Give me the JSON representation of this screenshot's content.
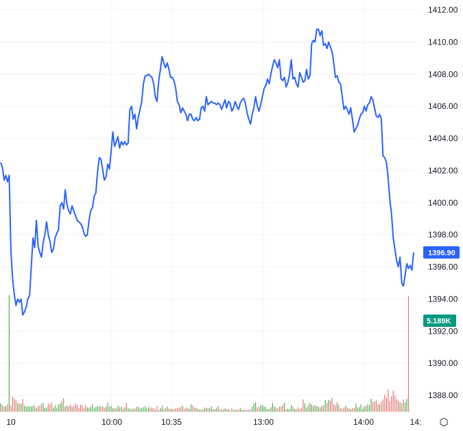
{
  "chart_data": {
    "type": "line",
    "series": [
      {
        "kind": "price",
        "color": "#2962ff",
        "values": [
          1402.5,
          1402.2,
          1401.4,
          1401.7,
          1401.3,
          1401.7,
          1397.0,
          1395.3,
          1394.3,
          1393.6,
          1394.0,
          1393.8,
          1394.0,
          1393.0,
          1393.2,
          1393.5,
          1394.0,
          1394.2,
          1396.0,
          1397.8,
          1397.2,
          1398.9,
          1397.3,
          1396.9,
          1396.6,
          1397.5,
          1398.0,
          1398.8,
          1398.0,
          1397.6,
          1396.9,
          1397.1,
          1397.8,
          1398.1,
          1398.3,
          1399.8,
          1400.0,
          1399.6,
          1400.8,
          1399.9,
          1399.5,
          1399.3,
          1399.8,
          1399.5,
          1399.2,
          1398.9,
          1398.8,
          1398.7,
          1398.5,
          1398.1,
          1397.9,
          1398.0,
          1398.9,
          1399.5,
          1399.7,
          1400.4,
          1400.6,
          1401.9,
          1402.8,
          1402.7,
          1402.1,
          1401.4,
          1401.6,
          1402.4,
          1402.1,
          1403.2,
          1404.4,
          1403.5,
          1403.8,
          1404.1,
          1403.4,
          1403.8,
          1403.6,
          1403.8,
          1403.6,
          1403.7,
          1405.8,
          1406.0,
          1405.2,
          1405.5,
          1404.6,
          1405.3,
          1405.8,
          1406.3,
          1407.4,
          1407.9,
          1407.9,
          1408.0,
          1407.9,
          1407.8,
          1407.4,
          1406.6,
          1406.3,
          1407.6,
          1408.3,
          1409.1,
          1408.7,
          1408.4,
          1408.7,
          1408.3,
          1407.8,
          1407.8,
          1407.6,
          1407.1,
          1406.3,
          1406.1,
          1405.6,
          1405.9,
          1405.7,
          1405.5,
          1405.1,
          1405.5,
          1405.5,
          1405.2,
          1405.1,
          1405.3,
          1405.1,
          1405.2,
          1405.9,
          1406.0,
          1405.7,
          1406.6,
          1406.1,
          1406.2,
          1406.3,
          1406.2,
          1406.2,
          1406.1,
          1406.2,
          1406.1,
          1405.8,
          1406.1,
          1406.4,
          1405.9,
          1406.3,
          1406.2,
          1405.7,
          1405.9,
          1406.3,
          1406.0,
          1405.8,
          1406.2,
          1406.4,
          1406.5,
          1406.2,
          1405.6,
          1405.2,
          1404.9,
          1405.5,
          1405.9,
          1406.6,
          1406.0,
          1405.7,
          1406.1,
          1406.6,
          1407.1,
          1407.3,
          1407.7,
          1407.4,
          1408.0,
          1408.5,
          1408.9,
          1408.7,
          1408.4,
          1408.9,
          1407.7,
          1407.6,
          1407.8,
          1407.2,
          1407.5,
          1408.0,
          1408.9,
          1407.7,
          1407.8,
          1407.4,
          1407.2,
          1408.1,
          1407.8,
          1407.5,
          1407.6,
          1408.3,
          1407.7,
          1407.9,
          1409.9,
          1410.1,
          1410.0,
          1410.8,
          1410.8,
          1410.4,
          1410.7,
          1409.8,
          1409.9,
          1409.6,
          1410.0,
          1409.7,
          1409.4,
          1408.7,
          1407.8,
          1407.9,
          1407.5,
          1407.4,
          1406.6,
          1405.8,
          1406.0,
          1405.8,
          1405.5,
          1405.9,
          1405.2,
          1404.4,
          1404.6,
          1404.8,
          1405.2,
          1405.5,
          1405.6,
          1406.0,
          1405.7,
          1406.1,
          1406.2,
          1406.6,
          1406.4,
          1405.9,
          1405.4,
          1405.3,
          1405.5,
          1405.2,
          1402.9,
          1402.8,
          1402.5,
          1401.6,
          1400.2,
          1399.3,
          1397.8,
          1397.1,
          1396.4,
          1396.0,
          1396.6,
          1395.0,
          1394.8,
          1395.5,
          1396.2,
          1395.9,
          1396.1,
          1395.8,
          1396.9
        ]
      },
      {
        "kind": "volume",
        "up_color": "#4caf50",
        "down_color": "#e57373",
        "values": [
          0.38,
          0.3,
          0.24,
          0.27,
          0.34,
          5.3,
          0.29,
          0.69,
          0.59,
          0.52,
          0.39,
          0.37,
          0.36,
          0.58,
          0.28,
          0.22,
          0.24,
          0.25,
          0.24,
          0.27,
          0.28,
          0.16,
          0.25,
          0.28,
          0.35,
          0.41,
          0.18,
          0.19,
          0.36,
          0.33,
          0.41,
          0.18,
          0.29,
          0.17,
          0.33,
          0.37,
          0.47,
          0.61,
          0.23,
          0.28,
          0.24,
          0.33,
          0.23,
          0.24,
          0.38,
          0.31,
          0.17,
          0.32,
          0.3,
          0.16,
          0.3,
          0.2,
          0.19,
          0.23,
          0.34,
          0.17,
          0.22,
          0.25,
          0.25,
          0.23,
          0.25,
          0.18,
          0.23,
          0.42,
          0.23,
          0.27,
          0.16,
          0.16,
          0.15,
          0.27,
          0.21,
          0.22,
          0.13,
          0.2,
          0.41,
          0.17,
          0.15,
          0.13,
          0.15,
          0.14,
          0.23,
          0.22,
          0.15,
          0.17,
          0.21,
          0.25,
          0.15,
          0.2,
          0.17,
          0.2,
          0.16,
          0.1,
          0.28,
          0.07,
          0.16,
          0.27,
          0.12,
          0.18,
          0.23,
          0.14,
          0.13,
          0.12,
          0.12,
          0.16,
          0.15,
          0.19,
          0.21,
          0.27,
          0.12,
          0.18,
          0.19,
          0.12,
          0.33,
          0.28,
          0.18,
          0.18,
          0.14,
          0.11,
          0.09,
          0.11,
          0.2,
          0.17,
          0.17,
          0.16,
          0.24,
          0.12,
          0.13,
          0.17,
          0.25,
          0.11,
          0.11,
          0.1,
          0.15,
          0.13,
          0.12,
          0.06,
          0.16,
          0.07,
          0.11,
          0.09,
          0.11,
          0.16,
          0.09,
          0.09,
          0.1,
          0.08,
          0.11,
          0.1,
          0.22,
          0.37,
          0.42,
          0.2,
          0.21,
          0.29,
          0.3,
          0.22,
          0.21,
          0.13,
          0.12,
          0.21,
          0.4,
          0.25,
          0.2,
          0.15,
          0.23,
          0.22,
          0.3,
          0.41,
          0.11,
          0.15,
          0.12,
          0.3,
          0.22,
          0.14,
          0.11,
          0.2,
          0.13,
          0.18,
          0.56,
          0.38,
          0.2,
          0.32,
          0.4,
          0.33,
          0.25,
          0.31,
          0.24,
          0.24,
          0.2,
          0.25,
          0.3,
          0.53,
          0.41,
          0.53,
          0.51,
          0.62,
          0.36,
          0.28,
          0.42,
          0.31,
          0.17,
          0.13,
          0.19,
          0.27,
          0.19,
          0.16,
          0.12,
          0.17,
          0.17,
          0.37,
          0.2,
          0.21,
          0.33,
          0.14,
          0.25,
          0.27,
          0.33,
          0.3,
          0.6,
          0.44,
          0.46,
          0.53,
          0.35,
          0.33,
          0.46,
          0.55,
          0.76,
          0.63,
          1.0,
          0.47,
          0.7,
          0.95,
          0.73,
          0.57,
          0.51,
          0.43,
          0.38,
          0.55,
          0.42,
          0.58,
          5.19
        ]
      }
    ],
    "y_axis": {
      "ticks": [
        "1412.00",
        "1410.00",
        "1408.00",
        "1406.00",
        "1404.00",
        "1402.00",
        "1400.00",
        "1398.00",
        "1396.00",
        "1394.00",
        "1392.00",
        "1390.00",
        "1388.00"
      ],
      "range": [
        1387.5,
        1412.5
      ]
    },
    "x_axis": {
      "ticks": [
        "10",
        "10:00",
        "10:35",
        "13:00",
        "14:00",
        "14:"
      ]
    },
    "last_price_label": "1396.90",
    "last_volume_label": "5.189K",
    "grid": true
  },
  "icons": {
    "settings": "settings-hexagon-icon",
    "settings_glyph": "⬡"
  }
}
